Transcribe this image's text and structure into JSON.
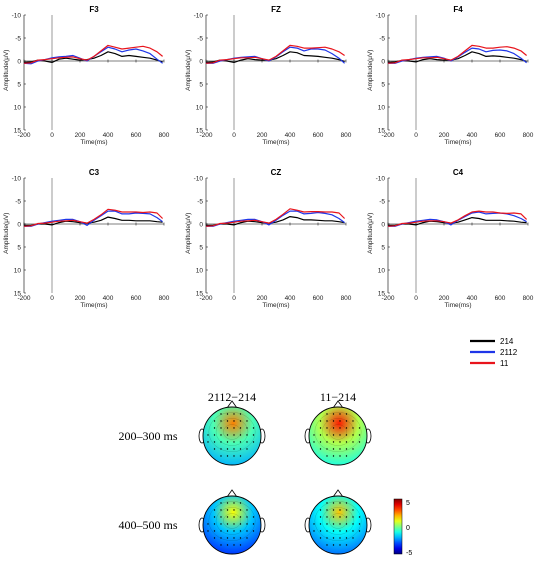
{
  "colors": {
    "214": "#000000",
    "2112": "#1f36e8",
    "11": "#e8141c"
  },
  "chart_data": [
    {
      "type": "line",
      "title": "F3",
      "xlabel": "Time(ms)",
      "ylabel": "Amplitude(μV)",
      "xlim": [
        -200,
        800
      ],
      "ylim": [
        -10,
        15
      ],
      "y_reversed": true,
      "xticks": [
        "-200",
        "0",
        "200",
        "400",
        "600",
        "800"
      ],
      "yticks": [
        "-10",
        "-5",
        "0",
        "5",
        "10",
        "15"
      ],
      "x": [
        -200,
        -150,
        -100,
        -50,
        0,
        50,
        100,
        150,
        200,
        250,
        300,
        350,
        400,
        450,
        500,
        550,
        600,
        650,
        700,
        750,
        790
      ],
      "series": [
        {
          "name": "214",
          "values": [
            0.3,
            0.2,
            -0.2,
            0,
            0.3,
            -0.4,
            -0.6,
            -0.4,
            -0.2,
            -0.3,
            -0.6,
            -1.2,
            -2.0,
            -1.6,
            -1.0,
            -1.2,
            -1.0,
            -0.8,
            -0.6,
            -0.2,
            0.2
          ]
        },
        {
          "name": "2112",
          "values": [
            0.5,
            0.6,
            0,
            -0.3,
            -0.7,
            -0.9,
            -1.0,
            -1.2,
            -0.6,
            0,
            -1.0,
            -2.0,
            -3.0,
            -2.6,
            -2.0,
            -2.4,
            -2.6,
            -2.2,
            -1.6,
            -0.4,
            0.5
          ]
        },
        {
          "name": "11",
          "values": [
            0.5,
            0.4,
            -0.2,
            -0.3,
            -0.5,
            -0.7,
            -0.8,
            -0.9,
            -0.5,
            -0.2,
            -1.0,
            -2.2,
            -3.4,
            -3.0,
            -2.6,
            -2.8,
            -3.0,
            -3.2,
            -2.8,
            -2.0,
            -1.0
          ]
        }
      ]
    },
    {
      "type": "line",
      "title": "FZ",
      "xlabel": "Time(ms)",
      "ylabel": "Amplitude(μV)",
      "xlim": [
        -200,
        800
      ],
      "ylim": [
        -10,
        15
      ],
      "y_reversed": true,
      "xticks": [
        "-200",
        "0",
        "200",
        "400",
        "600",
        "800"
      ],
      "yticks": [
        "-10",
        "-5",
        "0",
        "5",
        "10",
        "15"
      ],
      "x": [
        -200,
        -150,
        -100,
        -50,
        0,
        50,
        100,
        150,
        200,
        250,
        300,
        350,
        400,
        450,
        500,
        550,
        600,
        650,
        700,
        750,
        790
      ],
      "series": [
        {
          "name": "214",
          "values": [
            0.3,
            0.2,
            -0.2,
            0,
            0.3,
            -0.2,
            -0.5,
            -0.3,
            -0.2,
            -0.2,
            -0.5,
            -1.2,
            -2.0,
            -1.8,
            -1.2,
            -1.1,
            -1.0,
            -0.8,
            -0.6,
            -0.3,
            0.1
          ]
        },
        {
          "name": "2112",
          "values": [
            0.5,
            0.5,
            0,
            -0.3,
            -0.6,
            -0.8,
            -0.9,
            -1.0,
            -0.5,
            0,
            -0.9,
            -2.0,
            -3.0,
            -2.8,
            -2.2,
            -2.6,
            -2.6,
            -2.4,
            -1.6,
            -0.6,
            0.5
          ]
        },
        {
          "name": "11",
          "values": [
            0.5,
            0.4,
            -0.2,
            -0.3,
            -0.5,
            -0.7,
            -0.7,
            -0.8,
            -0.5,
            -0.2,
            -1.0,
            -2.2,
            -3.4,
            -3.2,
            -2.8,
            -2.8,
            -2.9,
            -3.0,
            -2.6,
            -2.0,
            -1.2
          ]
        }
      ]
    },
    {
      "type": "line",
      "title": "F4",
      "xlabel": "Time(ms)",
      "ylabel": "Amplitude(μV)",
      "xlim": [
        -200,
        800
      ],
      "ylim": [
        -10,
        15
      ],
      "y_reversed": true,
      "xticks": [
        "-200",
        "0",
        "200",
        "400",
        "600",
        "800"
      ],
      "yticks": [
        "-10",
        "-5",
        "0",
        "5",
        "10",
        "15"
      ],
      "x": [
        -200,
        -150,
        -100,
        -50,
        0,
        50,
        100,
        150,
        200,
        250,
        300,
        350,
        400,
        450,
        500,
        550,
        600,
        650,
        700,
        750,
        790
      ],
      "series": [
        {
          "name": "214",
          "values": [
            0.3,
            0.2,
            -0.1,
            0,
            0.2,
            -0.3,
            -0.5,
            -0.3,
            -0.2,
            -0.2,
            -0.5,
            -1.2,
            -2.0,
            -1.6,
            -1.0,
            -1.1,
            -1.0,
            -0.8,
            -0.6,
            -0.3,
            0.1
          ]
        },
        {
          "name": "2112",
          "values": [
            0.5,
            0.5,
            0,
            -0.3,
            -0.6,
            -0.8,
            -0.9,
            -1.0,
            -0.6,
            0,
            -0.9,
            -1.9,
            -2.8,
            -2.6,
            -2.0,
            -2.3,
            -2.4,
            -2.2,
            -1.6,
            -0.6,
            0.4
          ]
        },
        {
          "name": "11",
          "values": [
            0.5,
            0.4,
            -0.2,
            -0.3,
            -0.5,
            -0.7,
            -0.7,
            -0.8,
            -0.5,
            -0.2,
            -1.0,
            -2.2,
            -3.4,
            -3.2,
            -2.8,
            -2.8,
            -3.0,
            -3.1,
            -2.8,
            -2.2,
            -1.2
          ]
        }
      ]
    },
    {
      "type": "line",
      "title": "C3",
      "xlabel": "Time(ms)",
      "ylabel": "Amplitude(μV)",
      "xlim": [
        -200,
        800
      ],
      "ylim": [
        -10,
        15
      ],
      "y_reversed": true,
      "xticks": [
        "-200",
        "0",
        "200",
        "400",
        "600",
        "800"
      ],
      "yticks": [
        "-10",
        "-5",
        "0",
        "5",
        "10",
        "15"
      ],
      "x": [
        -200,
        -150,
        -100,
        -50,
        0,
        50,
        100,
        150,
        200,
        250,
        300,
        350,
        400,
        450,
        500,
        550,
        600,
        650,
        700,
        750,
        790
      ],
      "series": [
        {
          "name": "214",
          "values": [
            0.3,
            0.3,
            0,
            0,
            0.2,
            -0.3,
            -0.6,
            -0.5,
            -0.3,
            -0.2,
            -0.4,
            -0.8,
            -1.5,
            -1.2,
            -0.8,
            -0.8,
            -0.7,
            -0.7,
            -0.7,
            -0.5,
            -0.4
          ]
        },
        {
          "name": "2112",
          "values": [
            0.5,
            0.5,
            0,
            -0.3,
            -0.6,
            -0.8,
            -1.0,
            -1.0,
            -0.5,
            0.3,
            -0.8,
            -1.8,
            -2.8,
            -2.8,
            -2.2,
            -2.2,
            -2.4,
            -2.3,
            -2.2,
            -1.4,
            -0.5
          ]
        },
        {
          "name": "11",
          "values": [
            0.5,
            0.4,
            -0.1,
            -0.2,
            -0.4,
            -0.6,
            -0.7,
            -0.8,
            -0.5,
            -0.2,
            -1.0,
            -2.0,
            -3.2,
            -3.0,
            -2.6,
            -2.6,
            -2.6,
            -2.5,
            -2.6,
            -2.4,
            -1.2
          ]
        }
      ]
    },
    {
      "type": "line",
      "title": "CZ",
      "xlabel": "Time(ms)",
      "ylabel": "Amplitude(μV)",
      "xlim": [
        -200,
        800
      ],
      "ylim": [
        -10,
        15
      ],
      "y_reversed": true,
      "xticks": [
        "-200",
        "0",
        "200",
        "400",
        "600",
        "800"
      ],
      "yticks": [
        "-10",
        "-5",
        "0",
        "5",
        "10",
        "15"
      ],
      "x": [
        -200,
        -150,
        -100,
        -50,
        0,
        50,
        100,
        150,
        200,
        250,
        300,
        350,
        400,
        450,
        500,
        550,
        600,
        650,
        700,
        750,
        790
      ],
      "series": [
        {
          "name": "214",
          "values": [
            0.3,
            0.3,
            0,
            0,
            0.2,
            -0.3,
            -0.6,
            -0.5,
            -0.3,
            -0.2,
            -0.4,
            -0.9,
            -1.6,
            -1.4,
            -0.9,
            -0.9,
            -0.8,
            -0.7,
            -0.7,
            -0.5,
            -0.3
          ]
        },
        {
          "name": "2112",
          "values": [
            0.5,
            0.5,
            0,
            -0.3,
            -0.6,
            -0.8,
            -1.0,
            -1.0,
            -0.5,
            0.2,
            -0.8,
            -1.9,
            -2.8,
            -2.8,
            -2.2,
            -2.3,
            -2.5,
            -2.3,
            -2.0,
            -1.2,
            -0.3
          ]
        },
        {
          "name": "11",
          "values": [
            0.5,
            0.4,
            -0.1,
            -0.2,
            -0.4,
            -0.6,
            -0.7,
            -0.8,
            -0.5,
            -0.2,
            -1.0,
            -2.1,
            -3.3,
            -3.0,
            -2.6,
            -2.7,
            -2.7,
            -2.6,
            -2.6,
            -2.4,
            -1.2
          ]
        }
      ]
    },
    {
      "type": "line",
      "title": "C4",
      "xlabel": "Time(ms)",
      "ylabel": "Amplitude(μV)",
      "xlim": [
        -200,
        800
      ],
      "ylim": [
        -10,
        15
      ],
      "y_reversed": true,
      "xticks": [
        "-200",
        "0",
        "200",
        "400",
        "600",
        "800"
      ],
      "yticks": [
        "-10",
        "-5",
        "0",
        "5",
        "10",
        "15"
      ],
      "x": [
        -200,
        -150,
        -100,
        -50,
        0,
        50,
        100,
        150,
        200,
        250,
        300,
        350,
        400,
        450,
        500,
        550,
        600,
        650,
        700,
        750,
        790
      ],
      "series": [
        {
          "name": "214",
          "values": [
            0.3,
            0.3,
            0,
            0,
            0.2,
            -0.3,
            -0.6,
            -0.5,
            -0.3,
            -0.2,
            -0.4,
            -0.9,
            -1.4,
            -1.2,
            -0.8,
            -0.8,
            -0.8,
            -0.7,
            -0.6,
            -0.4,
            -0.3
          ]
        },
        {
          "name": "2112",
          "values": [
            0.5,
            0.5,
            0,
            -0.3,
            -0.6,
            -0.8,
            -1.0,
            -0.9,
            -0.5,
            0.2,
            -0.8,
            -1.6,
            -2.4,
            -2.6,
            -2.2,
            -2.3,
            -2.4,
            -2.2,
            -1.8,
            -1.2,
            -0.5
          ]
        },
        {
          "name": "11",
          "values": [
            0.5,
            0.4,
            -0.1,
            -0.2,
            -0.4,
            -0.6,
            -0.7,
            -0.7,
            -0.5,
            -0.2,
            -0.9,
            -1.8,
            -2.6,
            -2.8,
            -2.6,
            -2.6,
            -2.4,
            -2.3,
            -2.4,
            -2.2,
            -1.0
          ]
        }
      ]
    },
    {
      "type": "heatmap",
      "panel_type": "topographic maps",
      "columns": [
        "2112−214",
        "11−214"
      ],
      "rows": [
        "200–300 ms",
        "400–500 ms"
      ],
      "colorbar": {
        "range": [
          -5,
          5
        ],
        "ticks": [
          "5",
          "0",
          "-5"
        ],
        "colormap": "jet"
      },
      "maps": [
        {
          "row": "200–300 ms",
          "column": "2112−214",
          "level": -0.5
        },
        {
          "row": "200–300 ms",
          "column": "11−214",
          "level": 0.5
        },
        {
          "row": "400–500 ms",
          "column": "2112−214",
          "level": -1.8
        },
        {
          "row": "400–500 ms",
          "column": "11−214",
          "level": -1.2
        }
      ]
    }
  ],
  "legend": {
    "items": [
      "214",
      "2112",
      "11"
    ]
  }
}
